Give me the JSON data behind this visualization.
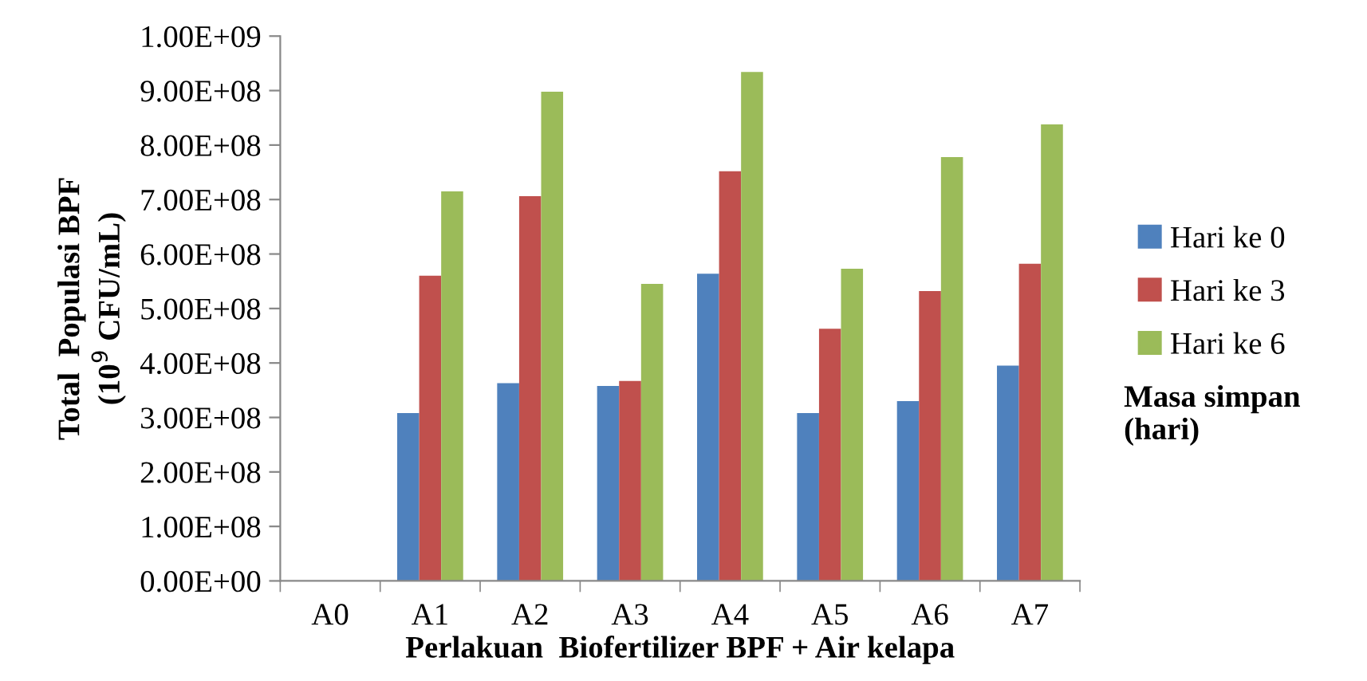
{
  "chart_data": {
    "type": "bar",
    "xlabel": "Perlakuan  Biofertilizer BPF + Air kelapa",
    "ylabel": "Total  Populasi BPF\n(10$^{9}$ CFU/mL)",
    "legend_title": "Masa simpan\n(hari)",
    "categories": [
      "A0",
      "A1",
      "A2",
      "A3",
      "A4",
      "A5",
      "A6",
      "A7"
    ],
    "series": [
      {
        "name": "Hari ke 0",
        "color": "#4f81bd",
        "values": [
          0,
          308000000,
          363000000,
          358000000,
          564000000,
          308000000,
          330000000,
          395000000
        ]
      },
      {
        "name": "Hari ke 3",
        "color": "#c0504d",
        "values": [
          0,
          560000000,
          706000000,
          367000000,
          752000000,
          463000000,
          532000000,
          582000000
        ]
      },
      {
        "name": "Hari ke 6",
        "color": "#9bbb59",
        "values": [
          0,
          715000000,
          898000000,
          545000000,
          934000000,
          573000000,
          778000000,
          838000000
        ]
      }
    ],
    "ylim": [
      0,
      1000000000
    ],
    "yticks": [
      {
        "value": 0,
        "label": "0.00E+00"
      },
      {
        "value": 100000000,
        "label": "1.00E+08"
      },
      {
        "value": 200000000,
        "label": "2.00E+08"
      },
      {
        "value": 300000000,
        "label": "3.00E+08"
      },
      {
        "value": 400000000,
        "label": "4.00E+08"
      },
      {
        "value": 500000000,
        "label": "5.00E+08"
      },
      {
        "value": 600000000,
        "label": "6.00E+08"
      },
      {
        "value": 700000000,
        "label": "7.00E+08"
      },
      {
        "value": 800000000,
        "label": "8.00E+08"
      },
      {
        "value": 900000000,
        "label": "9.00E+08"
      },
      {
        "value": 1000000000,
        "label": "1.00E+09"
      }
    ],
    "grid": false,
    "legend": "right"
  }
}
